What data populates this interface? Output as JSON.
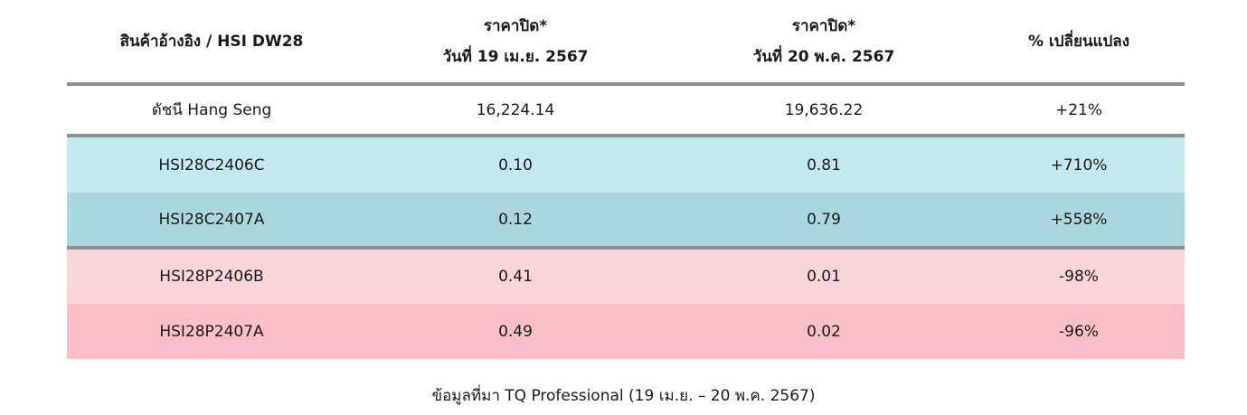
{
  "table": {
    "header": [
      [
        "สินค้าอ้างอิง / HSI DW28"
      ],
      [
        "ราคาปิด*",
        "วันที่ 19 เม.ย. 2567"
      ],
      [
        "ราคาปิด*",
        "วันที่ 20 พ.ค. 2567"
      ],
      [
        "% เปลี่ยนแปลง"
      ]
    ],
    "rows": [
      [
        "ดัชนี Hang Seng",
        "16,224.14",
        "19,636.22",
        "+21%"
      ],
      [
        "HSI28C2406C",
        "0.10",
        "0.81",
        "+710%"
      ],
      [
        "HSI28C2407A",
        "0.12",
        "0.79",
        "+558%"
      ],
      [
        "HSI28P2406B",
        "0.41",
        "0.01",
        "-98%"
      ],
      [
        "HSI28P2407A",
        "0.49",
        "0.02",
        "-96%"
      ]
    ]
  },
  "footnote": "ข้อมูลที่มา TQ Professional (19 เม.ย. – 20 พ.ค. 2567)"
}
